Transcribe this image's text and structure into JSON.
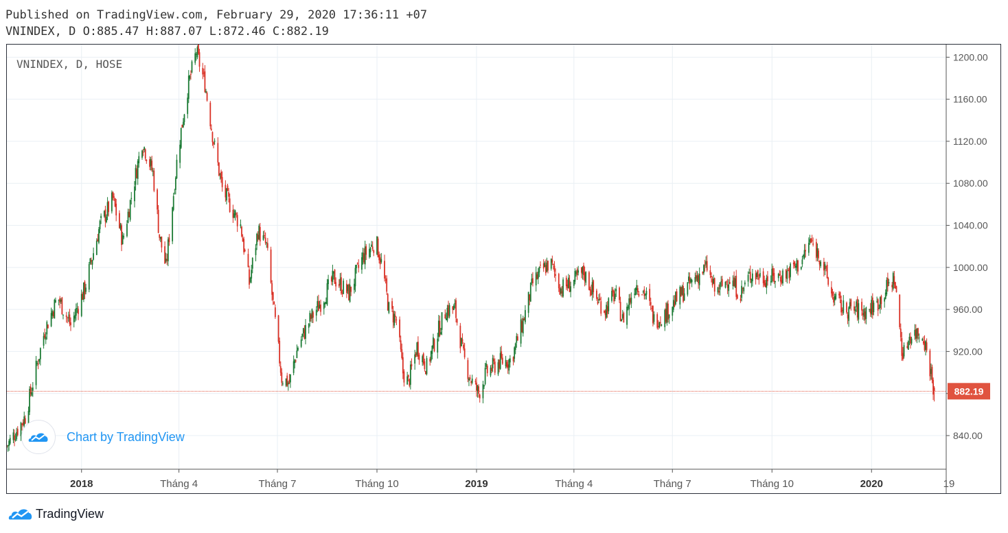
{
  "header": {
    "published": "Published on TradingView.com, February 29, 2020 17:36:11 +07",
    "ohlc": "VNINDEX, D O:885.47 H:887.07 L:872.46 C:882.19"
  },
  "watermark": {
    "text": "Chart by TradingView",
    "icon": "tradingview-cloud-icon"
  },
  "footer": {
    "brand": "TradingView",
    "icon": "tradingview-cloud-icon"
  },
  "colors": {
    "up": "#1b7a34",
    "down": "#d93025",
    "last_price": "#e0533f",
    "grid": "#e9eff4",
    "axis": "#555555"
  },
  "chart_data": {
    "type": "candlestick",
    "title": "VNINDEX, D, HOSE",
    "last_price": 882.19,
    "last_price_label": "882.19",
    "ylim": [
      808,
      1212
    ],
    "y_ticks": [
      {
        "value": 840,
        "label": "840.00"
      },
      {
        "value": 880,
        "label": ""
      },
      {
        "value": 920,
        "label": "920.00"
      },
      {
        "value": 960,
        "label": "960.00"
      },
      {
        "value": 1000,
        "label": "1000.00"
      },
      {
        "value": 1040,
        "label": "1040.00"
      },
      {
        "value": 1080,
        "label": "1080.00"
      },
      {
        "value": 1120,
        "label": "1120.00"
      },
      {
        "value": 1160,
        "label": "1160.00"
      },
      {
        "value": 1200,
        "label": "1200.00"
      }
    ],
    "x_range": [
      "2017-10-24",
      "2020-03-10"
    ],
    "x_ticks": [
      {
        "date": "2018-01-01",
        "label": "2018",
        "bold": true
      },
      {
        "date": "2018-04-01",
        "label": "Tháng 4",
        "bold": false
      },
      {
        "date": "2018-07-01",
        "label": "Tháng 7",
        "bold": false
      },
      {
        "date": "2018-10-01",
        "label": "Tháng 10",
        "bold": false
      },
      {
        "date": "2019-01-01",
        "label": "2019",
        "bold": true
      },
      {
        "date": "2019-04-01",
        "label": "Tháng 4",
        "bold": false
      },
      {
        "date": "2019-07-01",
        "label": "Tháng 7",
        "bold": false
      },
      {
        "date": "2019-10-01",
        "label": "Tháng 10",
        "bold": false
      },
      {
        "date": "2020-01-01",
        "label": "2020",
        "bold": true
      },
      {
        "date": "2020-03-25",
        "label": "19",
        "bold": false
      }
    ],
    "close_path": [
      [
        "2017-10-24",
        830
      ],
      [
        "2017-11-10",
        858
      ],
      [
        "2017-11-28",
        940
      ],
      [
        "2017-12-10",
        972
      ],
      [
        "2017-12-22",
        945
      ],
      [
        "2018-01-04",
        980
      ],
      [
        "2018-01-18",
        1040
      ],
      [
        "2018-01-30",
        1065
      ],
      [
        "2018-02-08",
        1025
      ],
      [
        "2018-02-26",
        1120
      ],
      [
        "2018-03-08",
        1090
      ],
      [
        "2018-03-14",
        1030
      ],
      [
        "2018-03-20",
        1000
      ],
      [
        "2018-03-26",
        1060
      ],
      [
        "2018-03-31",
        1110
      ],
      [
        "2018-04-09",
        1170
      ],
      [
        "2018-04-17",
        1205
      ],
      [
        "2018-04-25",
        1175
      ],
      [
        "2018-05-03",
        1120
      ],
      [
        "2018-05-11",
        1075
      ],
      [
        "2018-05-18",
        1060
      ],
      [
        "2018-05-28",
        1040
      ],
      [
        "2018-06-05",
        985
      ],
      [
        "2018-06-13",
        1035
      ],
      [
        "2018-06-21",
        1020
      ],
      [
        "2018-06-27",
        965
      ],
      [
        "2018-07-05",
        895
      ],
      [
        "2018-07-12",
        890
      ],
      [
        "2018-07-20",
        925
      ],
      [
        "2018-07-31",
        950
      ],
      [
        "2018-08-12",
        970
      ],
      [
        "2018-08-22",
        990
      ],
      [
        "2018-09-05",
        975
      ],
      [
        "2018-09-18",
        1010
      ],
      [
        "2018-09-30",
        1025
      ],
      [
        "2018-10-06",
        1000
      ],
      [
        "2018-10-12",
        960
      ],
      [
        "2018-10-19",
        950
      ],
      [
        "2018-10-25",
        900
      ],
      [
        "2018-10-30",
        890
      ],
      [
        "2018-11-07",
        925
      ],
      [
        "2018-11-16",
        905
      ],
      [
        "2018-11-25",
        935
      ],
      [
        "2018-12-04",
        960
      ],
      [
        "2018-12-12",
        960
      ],
      [
        "2018-12-20",
        915
      ],
      [
        "2018-12-26",
        895
      ],
      [
        "2019-01-03",
        880
      ],
      [
        "2019-01-10",
        900
      ],
      [
        "2019-01-22",
        910
      ],
      [
        "2019-02-02",
        912
      ],
      [
        "2019-02-12",
        945
      ],
      [
        "2019-02-22",
        985
      ],
      [
        "2019-03-01",
        995
      ],
      [
        "2019-03-10",
        1005
      ],
      [
        "2019-03-20",
        980
      ],
      [
        "2019-03-30",
        985
      ],
      [
        "2019-04-10",
        995
      ],
      [
        "2019-04-22",
        970
      ],
      [
        "2019-04-30",
        960
      ],
      [
        "2019-05-09",
        975
      ],
      [
        "2019-05-16",
        950
      ],
      [
        "2019-05-28",
        985
      ],
      [
        "2019-06-06",
        975
      ],
      [
        "2019-06-14",
        950
      ],
      [
        "2019-06-24",
        955
      ],
      [
        "2019-07-01",
        965
      ],
      [
        "2019-07-10",
        975
      ],
      [
        "2019-07-22",
        990
      ],
      [
        "2019-08-02",
        1000
      ],
      [
        "2019-08-10",
        975
      ],
      [
        "2019-08-22",
        990
      ],
      [
        "2019-09-02",
        975
      ],
      [
        "2019-09-12",
        995
      ],
      [
        "2019-09-24",
        990
      ],
      [
        "2019-10-04",
        990
      ],
      [
        "2019-10-15",
        995
      ],
      [
        "2019-10-28",
        1005
      ],
      [
        "2019-11-05",
        1025
      ],
      [
        "2019-11-15",
        1010
      ],
      [
        "2019-11-25",
        975
      ],
      [
        "2019-12-06",
        960
      ],
      [
        "2019-12-16",
        960
      ],
      [
        "2019-12-26",
        958
      ],
      [
        "2020-01-06",
        965
      ],
      [
        "2020-01-15",
        980
      ],
      [
        "2020-01-22",
        990
      ],
      [
        "2020-01-30",
        915
      ],
      [
        "2020-02-05",
        935
      ],
      [
        "2020-02-12",
        938
      ],
      [
        "2020-02-18",
        935
      ],
      [
        "2020-02-24",
        905
      ],
      [
        "2020-02-28",
        882.19
      ]
    ]
  }
}
